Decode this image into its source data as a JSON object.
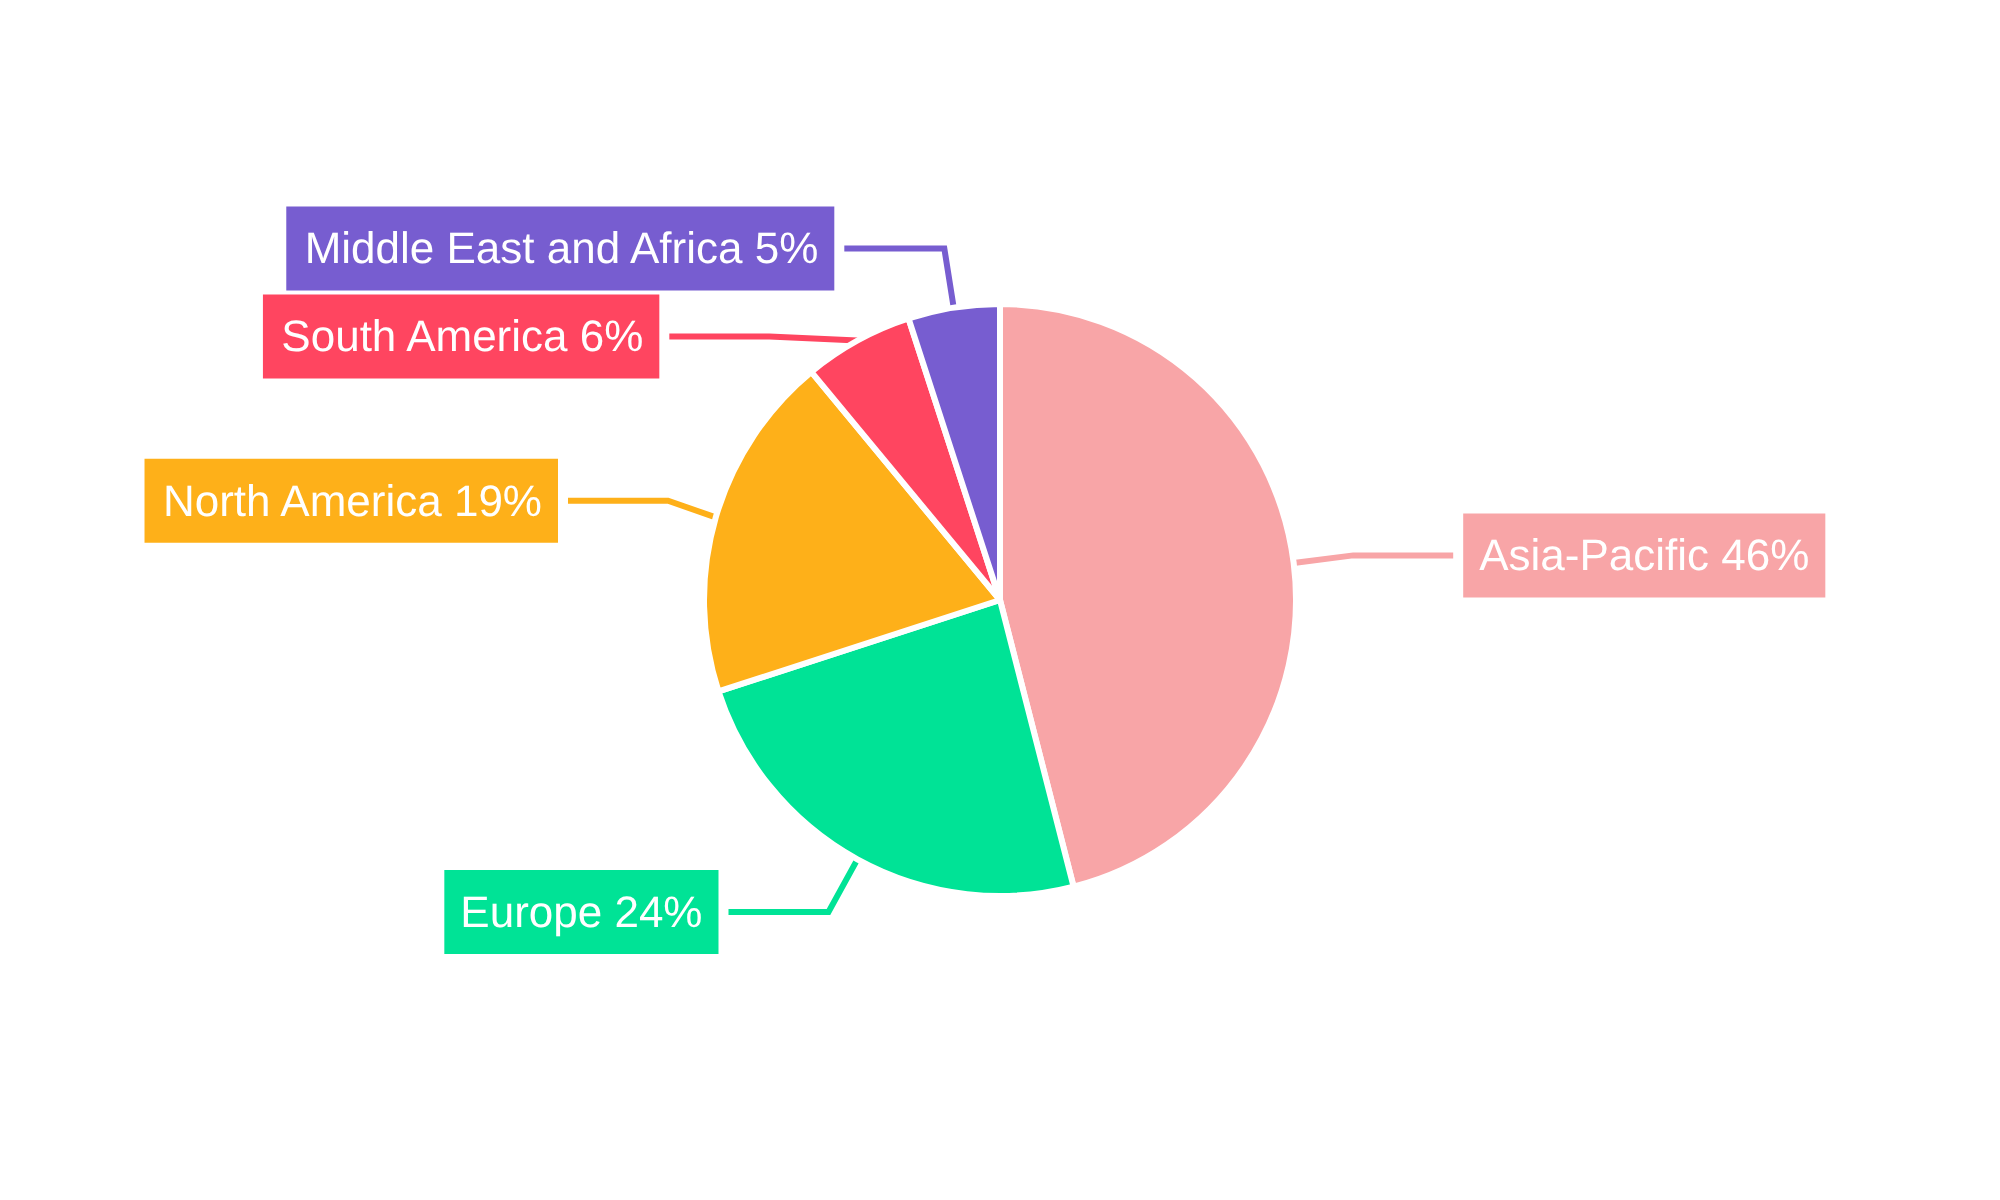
{
  "chart_data": {
    "type": "pie",
    "categories": [
      "Asia-Pacific",
      "Europe",
      "North America",
      "South America",
      "Middle East and Africa"
    ],
    "values": [
      46,
      24,
      19,
      6,
      5
    ],
    "colors": [
      "#f8a5a7",
      "#00e396",
      "#feb019",
      "#ff4560",
      "#775dd0"
    ],
    "value_labels": [
      "46%",
      "24%",
      "19%",
      "6%",
      "5%"
    ],
    "legend": false
  }
}
